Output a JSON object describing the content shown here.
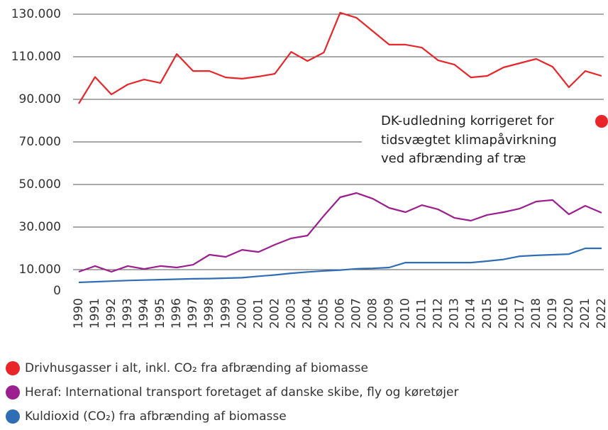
{
  "chart_data": {
    "type": "line",
    "categories": [
      "1990",
      "1991",
      "1992",
      "1993",
      "1994",
      "1995",
      "1996",
      "1997",
      "1998",
      "1999",
      "2000",
      "2001",
      "2002",
      "2003",
      "2004",
      "2005",
      "2006",
      "2007",
      "2008",
      "2009",
      "2010",
      "2011",
      "2012",
      "2013",
      "2014",
      "2015",
      "2016",
      "2017",
      "2018",
      "2019",
      "2020",
      "2021",
      "2022"
    ],
    "series": [
      {
        "name": "Drivhusgasser i alt, inkl. CO₂ fra afbrænding af biomasse",
        "color": "#e8262a",
        "values": [
          88000,
          100500,
          92300,
          97000,
          99300,
          97700,
          111300,
          103300,
          103300,
          100300,
          99700,
          100700,
          102000,
          112300,
          108000,
          112000,
          130700,
          128300,
          122000,
          115700,
          115700,
          114300,
          108300,
          106300,
          100300,
          101000,
          105000,
          107000,
          109000,
          105300,
          95700,
          103300,
          101000
        ]
      },
      {
        "name": "Heraf: International transport foretaget af danske skibe, fly og køretøjer",
        "color": "#9b1f8e",
        "values": [
          9000,
          11700,
          9000,
          11700,
          10300,
          11700,
          11000,
          12300,
          17000,
          16000,
          19300,
          18300,
          21700,
          24700,
          26000,
          35300,
          44000,
          46000,
          43300,
          39000,
          37000,
          40300,
          38300,
          34300,
          33000,
          35700,
          37000,
          38700,
          42000,
          42700,
          36000,
          40000,
          36700
        ]
      },
      {
        "name": "Kuldioxid (CO₂) fra afbrænding af biomasse",
        "color": "#2f6db5",
        "values": [
          4000,
          4300,
          4600,
          4900,
          5100,
          5300,
          5500,
          5700,
          5800,
          6000,
          6200,
          6900,
          7500,
          8300,
          8900,
          9400,
          9800,
          10400,
          10600,
          11000,
          13300,
          13300,
          13300,
          13300,
          13300,
          14000,
          14800,
          16300,
          16700,
          17000,
          17300,
          20000,
          20000
        ]
      }
    ],
    "ylim": [
      0,
      130000
    ],
    "yticks": [
      0,
      {
        "value": 10000,
        "label": "10.000"
      },
      {
        "value": 30000,
        "label": "30.000"
      },
      {
        "value": 50000,
        "label": "50.000"
      },
      {
        "value": 70000,
        "label": "70.000"
      },
      {
        "value": 90000,
        "label": "90.000"
      },
      {
        "value": 110000,
        "label": "110.000"
      },
      {
        "value": 130000,
        "label": "130.000"
      }
    ],
    "grid": true,
    "annotation": [
      "DK-udledning korrigeret for",
      "tidsvægtet klimapåvirkning",
      "ved afbrænding af træ"
    ]
  }
}
